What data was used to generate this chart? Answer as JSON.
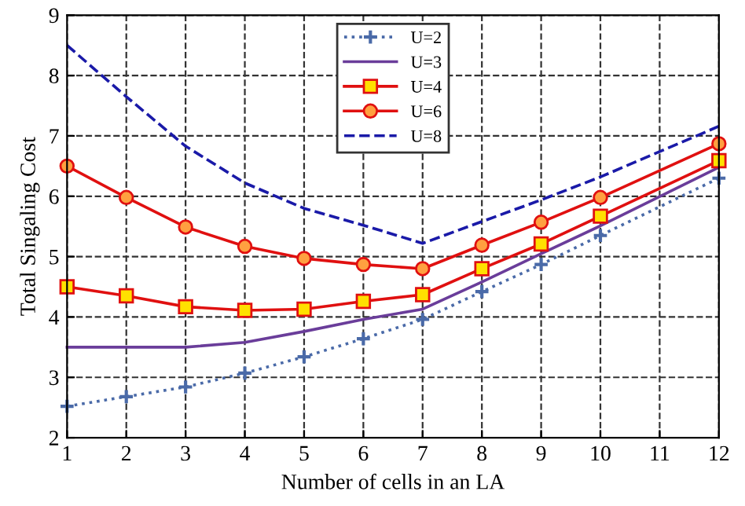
{
  "chart_data": {
    "type": "line",
    "xlabel": "Number of cells in an LA",
    "ylabel": "Total Singaling Cost",
    "x": [
      1,
      2,
      3,
      4,
      5,
      6,
      7,
      8,
      9,
      10,
      12
    ],
    "xlim": [
      1,
      12
    ],
    "xticks": [
      1,
      2,
      3,
      4,
      5,
      6,
      7,
      8,
      9,
      10,
      11,
      12
    ],
    "ylim": [
      2,
      9
    ],
    "yticks": [
      2,
      3,
      4,
      5,
      6,
      7,
      8,
      9
    ],
    "grid": true,
    "legend": "top",
    "series": [
      {
        "name": "U=2",
        "color": "#4a6aa8",
        "marker": "cross",
        "line_style": "dotted",
        "values": [
          2.52,
          2.68,
          2.84,
          3.07,
          3.34,
          3.64,
          3.96,
          4.42,
          4.87,
          5.35,
          6.3
        ]
      },
      {
        "name": "U=3",
        "color": "#6a3d9a",
        "marker": "none",
        "line_style": "solid",
        "values": [
          3.5,
          3.5,
          3.5,
          3.58,
          3.76,
          3.96,
          4.13,
          4.58,
          5.05,
          5.51,
          6.48
        ]
      },
      {
        "name": "U=4",
        "color": "#e01010",
        "marker": "square",
        "line_style": "solid",
        "values": [
          4.5,
          4.35,
          4.17,
          4.11,
          4.13,
          4.26,
          4.37,
          4.8,
          5.21,
          5.67,
          6.59
        ]
      },
      {
        "name": "U=6",
        "color": "#e01010",
        "marker": "circle",
        "line_style": "solid",
        "values": [
          6.5,
          5.98,
          5.49,
          5.17,
          4.97,
          4.87,
          4.8,
          5.19,
          5.57,
          5.98,
          6.87
        ]
      },
      {
        "name": "U=8",
        "color": "#1a1aa8",
        "marker": "none",
        "line_style": "dashed",
        "values": [
          8.5,
          7.65,
          6.83,
          6.22,
          5.8,
          5.52,
          5.22,
          5.58,
          5.94,
          6.32,
          7.16
        ]
      }
    ]
  }
}
